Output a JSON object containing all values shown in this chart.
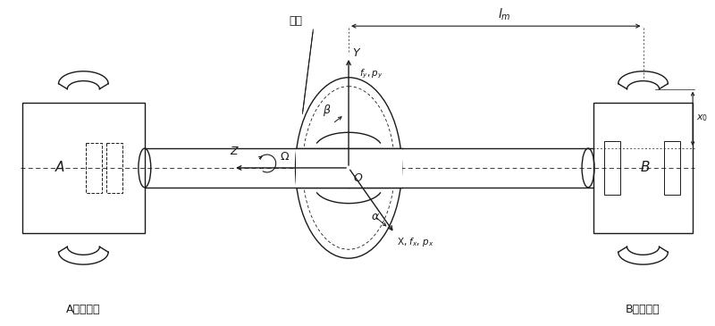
{
  "bg_color": "#ffffff",
  "line_color": "#1a1a1a",
  "label_zhuanzi": "转子",
  "label_A_bearing": "A端磁轴承",
  "label_B_bearing": "B端磁轴承",
  "label_A": "A",
  "label_B": "B",
  "label_O": "O",
  "label_Z": "Z",
  "label_Omega": "Ω",
  "label_beta": "β",
  "label_alpha": "α"
}
